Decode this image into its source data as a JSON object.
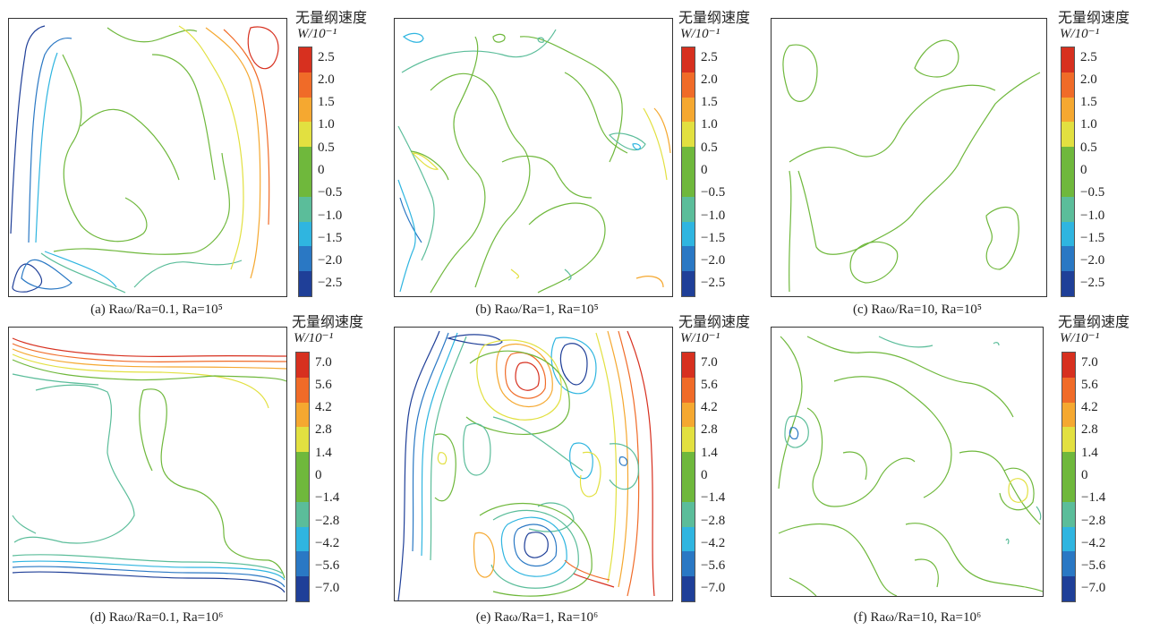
{
  "colorbar_title": "无量纲速度",
  "colorbar_unit": "W/10⁻¹",
  "palette": [
    "#d7301f",
    "#f06b28",
    "#f5a830",
    "#e2e040",
    "#6fb83c",
    "#5bbd9a",
    "#2fb5e0",
    "#2a78c4",
    "#1f3f98"
  ],
  "colorbars": {
    "top": [
      "2.5",
      "2.0",
      "1.5",
      "1.0",
      "0.5",
      "0",
      "−0.5",
      "−1.0",
      "−1.5",
      "−2.0",
      "−2.5"
    ],
    "bottom": [
      "7.0",
      "5.6",
      "4.2",
      "2.8",
      "1.4",
      "0",
      "−1.4",
      "−2.8",
      "−4.2",
      "−5.6",
      "−7.0"
    ]
  },
  "panels": [
    {
      "caption": "(a) Raω/Ra=0.1, Ra=10⁵"
    },
    {
      "caption": "(b) Raω/Ra=1, Ra=10⁵"
    },
    {
      "caption": "(c) Raω/Ra=10, Ra=10⁵"
    },
    {
      "caption": "(d) Raω/Ra=0.1, Ra=10⁶"
    },
    {
      "caption": "(e) Raω/Ra=1, Ra=10⁶"
    },
    {
      "caption": "(f) Raω/Ra=10, Ra=10⁶"
    }
  ],
  "chart_data": [
    {
      "type": "heatmap",
      "title": "(a) Raω/Ra=0.1, Ra=10⁵",
      "colorbar_ticks": [
        2.5,
        2.0,
        1.5,
        1.0,
        0.5,
        0,
        -0.5,
        -1.0,
        -1.5,
        -2.0,
        -2.5
      ]
    },
    {
      "type": "heatmap",
      "title": "(b) Raω/Ra=1, Ra=10⁵",
      "colorbar_ticks": [
        2.5,
        2.0,
        1.5,
        1.0,
        0.5,
        0,
        -0.5,
        -1.0,
        -1.5,
        -2.0,
        -2.5
      ]
    },
    {
      "type": "heatmap",
      "title": "(c) Raω/Ra=10, Ra=10⁵",
      "colorbar_ticks": [
        2.5,
        2.0,
        1.5,
        1.0,
        0.5,
        0,
        -0.5,
        -1.0,
        -1.5,
        -2.0,
        -2.5
      ]
    },
    {
      "type": "heatmap",
      "title": "(d) Raω/Ra=0.1, Ra=10⁶",
      "colorbar_ticks": [
        7.0,
        5.6,
        4.2,
        2.8,
        1.4,
        0,
        -1.4,
        -2.8,
        -4.2,
        -5.6,
        -7.0
      ]
    },
    {
      "type": "heatmap",
      "title": "(e) Raω/Ra=1, Ra=10⁶",
      "colorbar_ticks": [
        7.0,
        5.6,
        4.2,
        2.8,
        1.4,
        0,
        -1.4,
        -2.8,
        -4.2,
        -5.6,
        -7.0
      ]
    },
    {
      "type": "heatmap",
      "title": "(f) Raω/Ra=10, Ra=10⁶",
      "colorbar_ticks": [
        7.0,
        5.6,
        4.2,
        2.8,
        1.4,
        0,
        -1.4,
        -2.8,
        -4.2,
        -5.6,
        -7.0
      ]
    }
  ]
}
